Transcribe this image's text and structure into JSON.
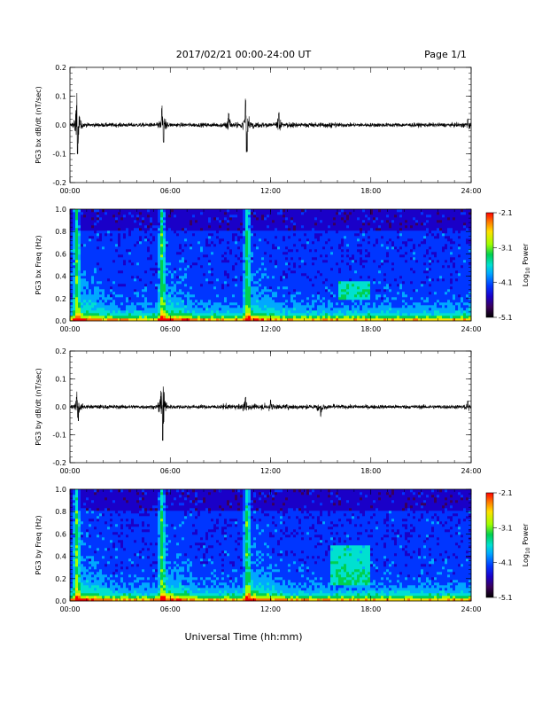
{
  "header": {
    "date_range": "2017/02/21  00:00-24:00 UT",
    "page": "Page 1/1"
  },
  "footer": {
    "xlabel": "Universal Time (hh:mm)"
  },
  "colors": {
    "trace": "#000000",
    "colormap": [
      "#000000",
      "#3a005a",
      "#1a00c8",
      "#0036ff",
      "#00a8ff",
      "#00e0d0",
      "#00d050",
      "#a0ff00",
      "#ffe000",
      "#ff7000",
      "#ff0000"
    ]
  },
  "chart_data": [
    {
      "type": "line",
      "ylabel": "PG3 bx dB/dt (nT/sec)",
      "ylim": [
        -0.2,
        0.2
      ],
      "yticks": [
        "0.2",
        "0.1",
        "0.0",
        "-0.1",
        "-0.2"
      ],
      "x_ticks": [
        "00:00",
        "06:00",
        "12:00",
        "18:00",
        "24:00"
      ],
      "xlim_hours": [
        0,
        24
      ],
      "baseline_amplitude": 0.006,
      "bursts": [
        {
          "hour": 0.4,
          "amplitude": 0.05
        },
        {
          "hour": 0.45,
          "amplitude": -0.1
        },
        {
          "hour": 5.5,
          "amplitude": 0.05
        },
        {
          "hour": 5.6,
          "amplitude": -0.06
        },
        {
          "hour": 9.5,
          "amplitude": 0.04
        },
        {
          "hour": 10.5,
          "amplitude": 0.06
        },
        {
          "hour": 10.6,
          "amplitude": -0.09
        },
        {
          "hour": 12.5,
          "amplitude": 0.04
        },
        {
          "hour": 23.8,
          "amplitude": 0.02
        }
      ]
    },
    {
      "type": "heatmap",
      "ylabel": "PG3 bx Freq (Hz)",
      "ylim": [
        0.0,
        1.0
      ],
      "yticks": [
        "1.0",
        "0.8",
        "0.6",
        "0.4",
        "0.2",
        "0.0"
      ],
      "x_ticks": [
        "00:00",
        "06:00",
        "12:00",
        "18:00",
        "24:00"
      ],
      "xlim_hours": [
        0,
        24
      ],
      "colorbar": {
        "label": "Log10 Power",
        "label_prefix": "Log",
        "label_sub": "10",
        "label_suffix": " Power",
        "range": [
          -5.1,
          -2.1
        ],
        "ticks": [
          "-2.1",
          "-3.1",
          "-4.1",
          "-5.1"
        ]
      },
      "features": {
        "vertical_bursts_hours": [
          0.4,
          5.5,
          10.6
        ],
        "pc1_event": {
          "start_hour": 16.0,
          "end_hour": 18.0,
          "freq_min": 0.2,
          "freq_max": 0.35
        }
      }
    },
    {
      "type": "line",
      "ylabel": "PG3 by dB/dt (nT/sec)",
      "ylim": [
        -0.2,
        0.2
      ],
      "yticks": [
        "0.2",
        "0.1",
        "0.0",
        "-0.1",
        "-0.2"
      ],
      "x_ticks": [
        "00:00",
        "06:00",
        "12:00",
        "18:00",
        "24:00"
      ],
      "xlim_hours": [
        0,
        24
      ],
      "baseline_amplitude": 0.006,
      "bursts": [
        {
          "hour": 0.4,
          "amplitude": 0.03
        },
        {
          "hour": 0.5,
          "amplitude": -0.05
        },
        {
          "hour": 5.5,
          "amplitude": 0.05
        },
        {
          "hour": 5.55,
          "amplitude": -0.12
        },
        {
          "hour": 10.5,
          "amplitude": 0.03
        },
        {
          "hour": 12.0,
          "amplitude": 0.02
        },
        {
          "hour": 15.0,
          "amplitude": -0.03
        },
        {
          "hour": 23.8,
          "amplitude": 0.02
        }
      ]
    },
    {
      "type": "heatmap",
      "ylabel": "PG3 by Freq (Hz)",
      "ylim": [
        0.0,
        1.0
      ],
      "yticks": [
        "1.0",
        "0.8",
        "0.6",
        "0.4",
        "0.2",
        "0.0"
      ],
      "x_ticks": [
        "00:00",
        "06:00",
        "12:00",
        "18:00",
        "24:00"
      ],
      "xlim_hours": [
        0,
        24
      ],
      "colorbar": {
        "label": "Log10 Power",
        "label_prefix": "Log",
        "label_sub": "10",
        "label_suffix": " Power",
        "range": [
          -5.1,
          -2.1
        ],
        "ticks": [
          "-2.1",
          "-3.1",
          "-4.1",
          "-5.1"
        ]
      },
      "features": {
        "vertical_bursts_hours": [
          0.4,
          5.5,
          10.6
        ],
        "pc1_event": {
          "start_hour": 15.5,
          "end_hour": 18.0,
          "freq_min": 0.15,
          "freq_max": 0.5
        }
      }
    }
  ]
}
